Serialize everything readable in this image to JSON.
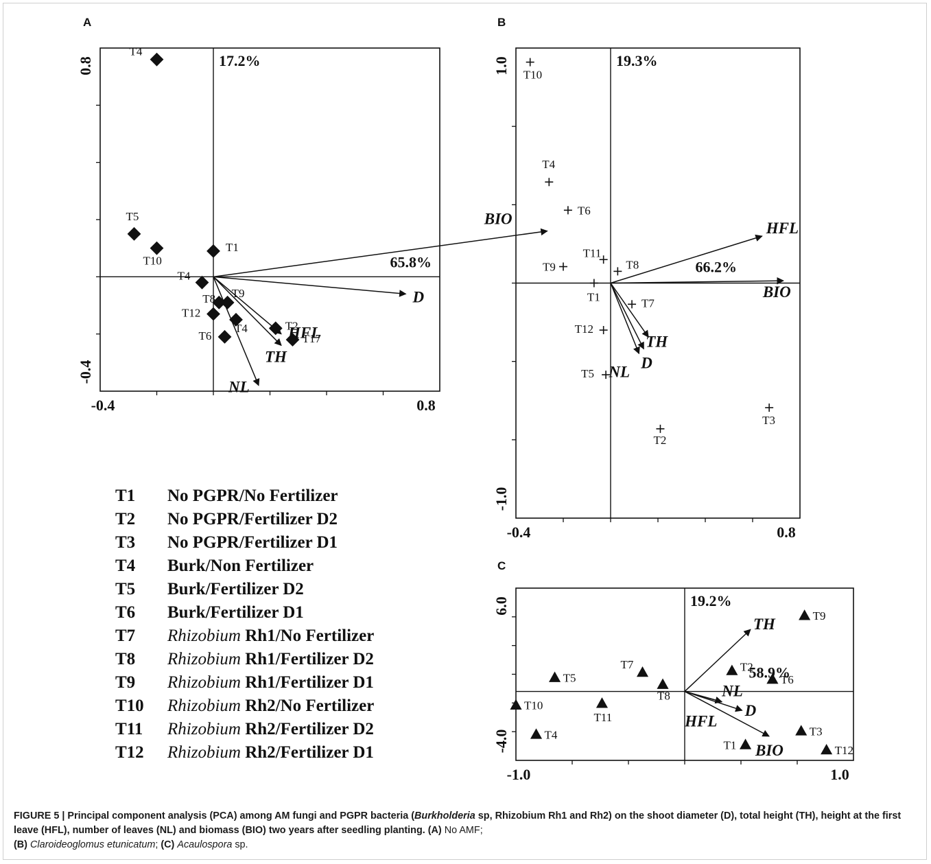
{
  "chart_data": [
    {
      "type": "scatter",
      "panel_label": "A",
      "xlim": [
        -0.4,
        0.8
      ],
      "ylim": [
        -0.4,
        0.8
      ],
      "x_tick_labels": [
        "-0.4",
        "0.8"
      ],
      "y_tick_labels": [
        "-0.4",
        "0.8"
      ],
      "axis1_variance": "65.8%",
      "axis2_variance": "17.2%",
      "marker": "diamond",
      "points": [
        {
          "label": "T4",
          "x": -0.2,
          "y": 0.76
        },
        {
          "label": "T5",
          "x": -0.28,
          "y": 0.15
        },
        {
          "label": "T10",
          "x": -0.2,
          "y": 0.1
        },
        {
          "label": "T1",
          "x": 0.0,
          "y": 0.09
        },
        {
          "label": "T4",
          "x": -0.04,
          "y": -0.02
        },
        {
          "label": "T8",
          "x": 0.02,
          "y": -0.09
        },
        {
          "label": "T9",
          "x": 0.05,
          "y": -0.09
        },
        {
          "label": "T12",
          "x": 0.0,
          "y": -0.13
        },
        {
          "label": "T4",
          "x": 0.08,
          "y": -0.15
        },
        {
          "label": "T2",
          "x": 0.22,
          "y": -0.18
        },
        {
          "label": "T6",
          "x": 0.04,
          "y": -0.21
        },
        {
          "label": "T17",
          "x": 0.28,
          "y": -0.22
        }
      ],
      "vectors": [
        {
          "label": "BIO",
          "x": 1.18,
          "y": 0.16
        },
        {
          "label": "D",
          "x": 0.68,
          "y": -0.06
        },
        {
          "label": "HFL",
          "x": 0.24,
          "y": -0.2
        },
        {
          "label": "TH",
          "x": 0.24,
          "y": -0.24
        },
        {
          "label": "NL",
          "x": 0.16,
          "y": -0.38
        }
      ]
    },
    {
      "type": "scatter",
      "panel_label": "B",
      "xlim": [
        -0.4,
        0.8
      ],
      "ylim": [
        -1.0,
        1.0
      ],
      "x_tick_labels": [
        "-0.4",
        "0.8"
      ],
      "y_tick_labels": [
        "-1.0",
        "1.0"
      ],
      "axis1_variance": "66.2%",
      "axis2_variance": "19.3%",
      "marker": "plus",
      "points": [
        {
          "label": "T10",
          "x": -0.34,
          "y": 0.94
        },
        {
          "label": "T4",
          "x": -0.26,
          "y": 0.43
        },
        {
          "label": "T6",
          "x": -0.18,
          "y": 0.31
        },
        {
          "label": "T9",
          "x": -0.2,
          "y": 0.07
        },
        {
          "label": "T11",
          "x": -0.03,
          "y": 0.1
        },
        {
          "label": "T8",
          "x": 0.03,
          "y": 0.05
        },
        {
          "label": "T1",
          "x": -0.07,
          "y": 0.0
        },
        {
          "label": "T7",
          "x": 0.09,
          "y": -0.09
        },
        {
          "label": "T12",
          "x": -0.03,
          "y": -0.2
        },
        {
          "label": "T5",
          "x": -0.02,
          "y": -0.39
        },
        {
          "label": "T2",
          "x": 0.21,
          "y": -0.62
        },
        {
          "label": "T3",
          "x": 0.67,
          "y": -0.53
        }
      ],
      "vectors": [
        {
          "label": "HFL",
          "x": 0.64,
          "y": 0.2
        },
        {
          "label": "BIO",
          "x": 0.73,
          "y": 0.01
        },
        {
          "label": "TH",
          "x": 0.16,
          "y": -0.23
        },
        {
          "label": "D",
          "x": 0.14,
          "y": -0.28
        },
        {
          "label": "NL",
          "x": 0.12,
          "y": -0.3
        }
      ]
    },
    {
      "type": "scatter",
      "panel_label": "C",
      "xlim": [
        -1.0,
        1.0
      ],
      "ylim": [
        -4.0,
        6.0
      ],
      "x_tick_labels": [
        "-1.0",
        "1.0"
      ],
      "y_tick_labels": [
        "-4.0",
        "6.0"
      ],
      "axis1_variance": "58.9%",
      "axis2_variance": "19.2%",
      "marker": "triangle",
      "points": [
        {
          "label": "T9",
          "x": 0.71,
          "y": 4.4
        },
        {
          "label": "T7",
          "x": -0.25,
          "y": 1.1
        },
        {
          "label": "T5",
          "x": -0.77,
          "y": 0.8
        },
        {
          "label": "T8",
          "x": -0.13,
          "y": 0.4
        },
        {
          "label": "T2",
          "x": 0.28,
          "y": 1.2
        },
        {
          "label": "T6",
          "x": 0.52,
          "y": 0.7
        },
        {
          "label": "T10",
          "x": -1.0,
          "y": -0.8
        },
        {
          "label": "T11",
          "x": -0.49,
          "y": -0.7
        },
        {
          "label": "T4",
          "x": -0.88,
          "y": -2.5
        },
        {
          "label": "T3",
          "x": 0.69,
          "y": -2.3
        },
        {
          "label": "T1",
          "x": 0.36,
          "y": -3.1
        },
        {
          "label": "T12",
          "x": 0.84,
          "y": -3.4
        }
      ],
      "vectors": [
        {
          "label": "TH",
          "x": 0.39,
          "y": 3.6
        },
        {
          "label": "NL",
          "x": 0.22,
          "y": -0.6
        },
        {
          "label": "D",
          "x": 0.34,
          "y": -1.1
        },
        {
          "label": "HFL",
          "x": 0.22,
          "y": -0.6
        },
        {
          "label": "BIO",
          "x": 0.5,
          "y": -2.6
        }
      ]
    }
  ],
  "legend": [
    {
      "code": "T1",
      "genus": "",
      "desc": "No PGPR/No Fertilizer"
    },
    {
      "code": "T2",
      "genus": "",
      "desc": "No PGPR/Fertilizer D2"
    },
    {
      "code": "T3",
      "genus": "",
      "desc": "No PGPR/Fertilizer D1"
    },
    {
      "code": "T4",
      "genus": "",
      "desc": "Burk/Non Fertilizer"
    },
    {
      "code": "T5",
      "genus": "",
      "desc": "Burk/Fertilizer D2"
    },
    {
      "code": "T6",
      "genus": "",
      "desc": "Burk/Fertilizer D1"
    },
    {
      "code": "T7",
      "genus": "Rhizobium",
      "desc": "Rh1/No Fertilizer"
    },
    {
      "code": "T8",
      "genus": "Rhizobium",
      "desc": "Rh1/Fertilizer D2"
    },
    {
      "code": "T9",
      "genus": "Rhizobium",
      "desc": "Rh1/Fertilizer D1"
    },
    {
      "code": "T10",
      "genus": "Rhizobium",
      "desc": "Rh2/No Fertilizer"
    },
    {
      "code": "T11",
      "genus": "Rhizobium",
      "desc": "Rh2/Fertilizer D2"
    },
    {
      "code": "T12",
      "genus": "Rhizobium",
      "desc": "Rh2/Fertilizer D1"
    }
  ],
  "caption": {
    "bold_prefix": "FIGURE 5 | Principal component analysis (PCA) among AM fungi and PGPR bacteria (",
    "bold_italic_genus": "Burkholderia",
    "bold_mid": " sp, Rhizobium Rh1 and Rh2) on the shoot diameter (D), total height (TH), height at the first leave (HFL), number of leaves (NL) and biomass (BIO) two years after seedling planting. ",
    "part_a_label": "(A)",
    "part_a_text": " No AMF;",
    "part_b_label": "(B)",
    "part_b_text": "Claroideoglomus etunicatum",
    "part_c_label": "(C)",
    "part_c_text": "Acaulospora",
    "part_c_suffix": " sp."
  }
}
